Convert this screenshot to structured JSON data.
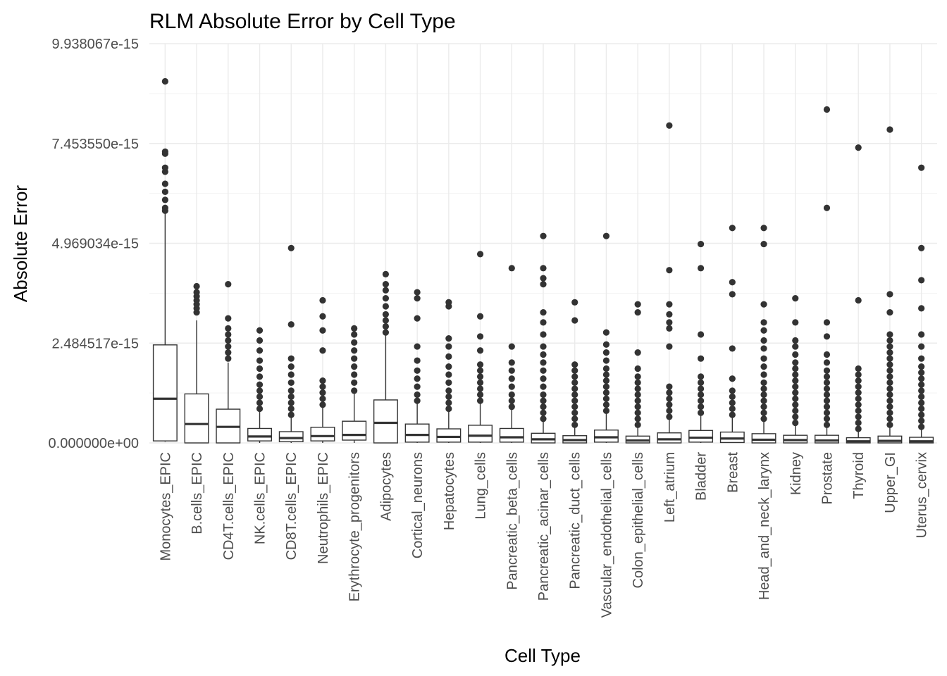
{
  "chart_data": {
    "type": "box",
    "title": "RLM Absolute Error by Cell Type",
    "xlabel": "Cell Type",
    "ylabel": "Absolute Error",
    "y_ticks": [
      0,
      2.484517e-15,
      4.969034e-15,
      7.45355e-15,
      9.938067e-15
    ],
    "y_tick_labels": [
      "0.000000e+00",
      "2.484517e-15",
      "4.969034e-15",
      "7.453550e-15",
      "9.938067e-15"
    ],
    "ylim": [
      0,
      9.938067e-15
    ],
    "grid": true,
    "categories": [
      "Monocytes_EPIC",
      "B.cells_EPIC",
      "CD4T.cells_EPIC",
      "NK.cells_EPIC",
      "CD8T.cells_EPIC",
      "Neutrophils_EPIC",
      "Erythrocyte_progenitors",
      "Adipocytes",
      "Cortical_neurons",
      "Hepatocytes",
      "Lung_cells",
      "Pancreatic_beta_cells",
      "Pancreatic_acinar_cells",
      "Pancreatic_duct_cells",
      "Vascular_endothelial_cells",
      "Colon_epithelial_cells",
      "Left_atrium",
      "Bladder",
      "Breast",
      "Head_and_neck_larynx",
      "Kidney",
      "Prostate",
      "Thyroid",
      "Upper_GI",
      "Uterus_cervix"
    ],
    "boxes": [
      {
        "min": 3e-17,
        "q1": 5e-17,
        "median": 1.1e-15,
        "q3": 2.44e-15,
        "max": 5.75e-15,
        "outliers": [
          5.78e-15,
          5.85e-15,
          6.05e-15,
          6.25e-15,
          6.45e-15,
          6.75e-15,
          6.85e-15,
          7.2e-15,
          7.25e-15,
          9e-15
        ]
      },
      {
        "min": 0.0,
        "q1": 0.0,
        "median": 4.7e-16,
        "q3": 1.22e-15,
        "max": 3.05e-15,
        "outliers": [
          3.25e-15,
          3.35e-15,
          3.45e-15,
          3.55e-15,
          3.65e-15,
          3.75e-15,
          3.9e-15
        ]
      },
      {
        "min": 0.0,
        "q1": 0.0,
        "median": 4e-16,
        "q3": 8.4e-16,
        "max": 2e-15,
        "outliers": [
          2.1e-15,
          2.25e-15,
          2.4e-15,
          2.55e-15,
          2.7e-15,
          2.85e-15,
          3.1e-15,
          3.95e-15
        ]
      },
      {
        "min": 0.0,
        "q1": 5e-17,
        "median": 1.6e-16,
        "q3": 3.6e-16,
        "max": 8e-16,
        "outliers": [
          8.5e-16,
          1e-15,
          1.15e-15,
          1.3e-15,
          1.45e-15,
          1.65e-15,
          1.85e-15,
          2.05e-15,
          2.3e-15,
          2.55e-15,
          2.8e-15
        ]
      },
      {
        "min": 0.0,
        "q1": 3e-17,
        "median": 1.2e-16,
        "q3": 2.8e-16,
        "max": 6.4e-16,
        "outliers": [
          7e-16,
          8.5e-16,
          1e-15,
          1.15e-15,
          1.3e-15,
          1.5e-15,
          1.7e-15,
          1.9e-15,
          2.1e-15,
          2.95e-15,
          4.85e-15
        ]
      },
      {
        "min": 0.0,
        "q1": 5e-17,
        "median": 1.7e-16,
        "q3": 3.9e-16,
        "max": 9.2e-16,
        "outliers": [
          9.5e-16,
          1.1e-15,
          1.25e-15,
          1.4e-15,
          1.55e-15,
          2.3e-15,
          2.8e-15,
          3.15e-15,
          3.55e-15
        ]
      },
      {
        "min": 0.0,
        "q1": 7e-17,
        "median": 2e-16,
        "q3": 5.4e-16,
        "max": 1.25e-15,
        "outliers": [
          1.3e-15,
          1.5e-15,
          1.7e-15,
          1.9e-15,
          2.1e-15,
          2.3e-15,
          2.5e-15,
          2.7e-15,
          2.85e-15
        ]
      },
      {
        "min": 0.0,
        "q1": 0.0,
        "median": 5e-16,
        "q3": 1.07e-15,
        "max": 2.7e-15,
        "outliers": [
          2.75e-15,
          2.9e-15,
          3.05e-15,
          3.2e-15,
          3.4e-15,
          3.6e-15,
          3.8e-15,
          3.95e-15,
          4.2e-15
        ]
      },
      {
        "min": 0.0,
        "q1": 2e-17,
        "median": 2e-16,
        "q3": 4.7e-16,
        "max": 1e-15,
        "outliers": [
          1.05e-15,
          1.2e-15,
          1.4e-15,
          1.6e-15,
          1.8e-15,
          2.05e-15,
          2.4e-15,
          3.1e-15,
          3.6e-15,
          3.75e-15
        ]
      },
      {
        "min": 0.0,
        "q1": 2e-17,
        "median": 1.5e-16,
        "q3": 3.5e-16,
        "max": 8e-16,
        "outliers": [
          8.5e-16,
          1e-15,
          1.15e-15,
          1.3e-15,
          1.5e-15,
          1.7e-15,
          1.9e-15,
          2.15e-15,
          2.4e-15,
          2.6e-15,
          3.4e-15,
          3.5e-15
        ]
      },
      {
        "min": 0.0,
        "q1": 2e-17,
        "median": 1.8e-16,
        "q3": 4.4e-16,
        "max": 1e-15,
        "outliers": [
          1.05e-15,
          1.2e-15,
          1.35e-15,
          1.5e-15,
          1.65e-15,
          1.8e-15,
          1.95e-15,
          2.3e-15,
          2.65e-15,
          3.15e-15,
          4.7e-15
        ]
      },
      {
        "min": 0.0,
        "q1": 2e-17,
        "median": 1.4e-16,
        "q3": 3.6e-16,
        "max": 8.3e-16,
        "outliers": [
          9e-16,
          1.05e-15,
          1.2e-15,
          1.4e-15,
          1.6e-15,
          1.8e-15,
          2e-15,
          2.4e-15,
          4.35e-15
        ]
      },
      {
        "min": 0.0,
        "q1": 0.0,
        "median": 9e-17,
        "q3": 2.4e-16,
        "max": 5.6e-16,
        "outliers": [
          6e-16,
          7.5e-16,
          9e-16,
          1.05e-15,
          1.2e-15,
          1.4e-15,
          1.6e-15,
          1.8e-15,
          2e-15,
          2.2e-15,
          2.4e-15,
          2.7e-15,
          3e-15,
          3.25e-15,
          3.95e-15,
          4.1e-15,
          4.35e-15,
          5.15e-15
        ]
      },
      {
        "min": 0.0,
        "q1": 0.0,
        "median": 7e-17,
        "q3": 1.8e-16,
        "max": 4e-16,
        "outliers": [
          4.5e-16,
          6e-16,
          7.5e-16,
          9e-16,
          1.05e-15,
          1.2e-15,
          1.35e-15,
          1.5e-15,
          1.65e-15,
          1.8e-15,
          1.95e-15,
          3.05e-15,
          3.5e-15
        ]
      },
      {
        "min": 0.0,
        "q1": 2e-17,
        "median": 1.4e-16,
        "q3": 3.2e-16,
        "max": 7.5e-16,
        "outliers": [
          8e-16,
          9.5e-16,
          1.1e-15,
          1.25e-15,
          1.4e-15,
          1.55e-15,
          1.7e-15,
          1.85e-15,
          2.05e-15,
          2.25e-15,
          2.45e-15,
          2.75e-15,
          5.15e-15
        ]
      },
      {
        "min": 0.0,
        "q1": 0.0,
        "median": 6e-17,
        "q3": 1.7e-16,
        "max": 4e-16,
        "outliers": [
          4.5e-16,
          6e-16,
          7.5e-16,
          9e-16,
          1.05e-15,
          1.2e-15,
          1.35e-15,
          1.5e-15,
          1.65e-15,
          1.85e-15,
          2.25e-15,
          3.25e-15,
          3.45e-15
        ]
      },
      {
        "min": 0.0,
        "q1": 0.0,
        "median": 9e-17,
        "q3": 2.5e-16,
        "max": 6e-16,
        "outliers": [
          6.5e-16,
          8e-16,
          9.5e-16,
          1.1e-15,
          1.25e-15,
          1.4e-15,
          2.4e-15,
          2.85e-15,
          3e-15,
          3.2e-15,
          3.45e-15,
          4.3e-15,
          7.9e-15
        ]
      },
      {
        "min": 0.0,
        "q1": 2e-17,
        "median": 1.3e-16,
        "q3": 3.1e-16,
        "max": 7.2e-16,
        "outliers": [
          7.5e-16,
          9e-16,
          1.05e-15,
          1.2e-15,
          1.35e-15,
          1.5e-15,
          1.65e-15,
          2.1e-15,
          2.7e-15,
          4.35e-15,
          4.95e-15
        ]
      },
      {
        "min": 0.0,
        "q1": 1e-17,
        "median": 1.1e-16,
        "q3": 2.7e-16,
        "max": 6.3e-16,
        "outliers": [
          7e-16,
          8.5e-16,
          1e-15,
          1.15e-15,
          1.3e-15,
          1.6e-15,
          2.35e-15,
          3.7e-15,
          4e-15,
          5.35e-15
        ]
      },
      {
        "min": 0.0,
        "q1": 0.0,
        "median": 8e-17,
        "q3": 2.3e-16,
        "max": 5.5e-16,
        "outliers": [
          6e-16,
          7.5e-16,
          9e-16,
          1.05e-15,
          1.2e-15,
          1.35e-15,
          1.5e-15,
          1.7e-15,
          1.9e-15,
          2.1e-15,
          2.35e-15,
          2.55e-15,
          2.8e-15,
          3e-15,
          3.45e-15,
          4.95e-15,
          5.35e-15
        ]
      },
      {
        "min": 0.0,
        "q1": 0.0,
        "median": 7e-17,
        "q3": 1.9e-16,
        "max": 4.5e-16,
        "outliers": [
          5e-16,
          6.5e-16,
          8e-16,
          9.5e-16,
          1.1e-15,
          1.25e-15,
          1.4e-15,
          1.55e-15,
          1.7e-15,
          1.85e-15,
          2e-15,
          2.2e-15,
          2.4e-15,
          2.55e-15,
          3e-15,
          3.6e-15
        ]
      },
      {
        "min": 0.0,
        "q1": 0.0,
        "median": 6e-17,
        "q3": 1.9e-16,
        "max": 4e-16,
        "outliers": [
          4.5e-16,
          6e-16,
          7.5e-16,
          9e-16,
          1.05e-15,
          1.2e-15,
          1.35e-15,
          1.5e-15,
          1.65e-15,
          1.8e-15,
          2e-15,
          2.2e-15,
          2.65e-15,
          3e-15,
          5.85e-15,
          8.3e-15
        ]
      },
      {
        "min": 0.0,
        "q1": 0.0,
        "median": 4e-17,
        "q3": 1.3e-16,
        "max": 3.2e-16,
        "outliers": [
          3.5e-16,
          5e-16,
          6.5e-16,
          8e-16,
          9.5e-16,
          1.1e-15,
          1.25e-15,
          1.4e-15,
          1.55e-15,
          1.7e-15,
          1.85e-15,
          3.55e-15,
          7.35e-15
        ]
      },
      {
        "min": 0.0,
        "q1": 0.0,
        "median": 5e-17,
        "q3": 1.7e-16,
        "max": 4e-16,
        "outliers": [
          4.5e-16,
          6e-16,
          7.5e-16,
          9e-16,
          1.05e-15,
          1.2e-15,
          1.35e-15,
          1.5e-15,
          1.65e-15,
          1.8e-15,
          1.95e-15,
          2.1e-15,
          2.25e-15,
          2.4e-15,
          2.55e-15,
          2.7e-15,
          3.25e-15,
          3.7e-15,
          7.8e-15
        ]
      },
      {
        "min": 0.0,
        "q1": 0.0,
        "median": 4e-17,
        "q3": 1.4e-16,
        "max": 3.5e-16,
        "outliers": [
          4e-16,
          5.5e-16,
          7e-16,
          8.5e-16,
          1e-15,
          1.15e-15,
          1.3e-15,
          1.45e-15,
          1.6e-15,
          1.75e-15,
          1.9e-15,
          2.1e-15,
          2.4e-15,
          2.7e-15,
          3.35e-15,
          4.05e-15,
          4.85e-15,
          6.85e-15
        ]
      }
    ]
  }
}
